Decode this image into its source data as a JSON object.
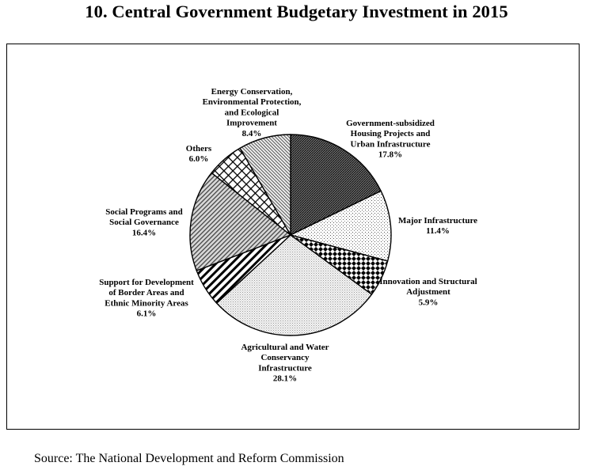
{
  "title": "10. Central Government Budgetary Investment in 2015",
  "source": "Source: The National Development and Reform Commission",
  "chart_data": {
    "type": "pie",
    "title": "10. Central Government Budgetary Investment in 2015",
    "unit": "%",
    "slices": [
      {
        "name": "Government-subsidized Housing Projects and Urban Infrastructure",
        "lines": [
          "Government-subsidized",
          "Housing Projects and",
          "Urban Infrastructure"
        ],
        "value": 17.8,
        "label": "17.8%",
        "pattern": "dense-crosshatch"
      },
      {
        "name": "Major Infrastructure",
        "lines": [
          "Major Infrastructure"
        ],
        "value": 11.4,
        "label": "11.4%",
        "pattern": "dots"
      },
      {
        "name": "Innovation and Structural Adjustment",
        "lines": [
          "Innovation and Structural",
          "Adjustment"
        ],
        "value": 5.9,
        "label": "5.9%",
        "pattern": "checker"
      },
      {
        "name": "Agricultural and Water Conservancy Infrastructure",
        "lines": [
          "Agricultural and Water",
          "Conservancy",
          "Infrastructure"
        ],
        "value": 28.1,
        "label": "28.1%",
        "pattern": "fine-dots"
      },
      {
        "name": "Support for Development of Border Areas and Ethnic Minority Areas",
        "lines": [
          "Support for Development",
          "of Border Areas and",
          "Ethnic Minority Areas"
        ],
        "value": 6.1,
        "label": "6.1%",
        "pattern": "wide-diagonal"
      },
      {
        "name": "Social Programs and Social Governance",
        "lines": [
          "Social Programs and",
          "Social Governance"
        ],
        "value": 16.4,
        "label": "16.4%",
        "pattern": "diagonal-medium"
      },
      {
        "name": "Others",
        "lines": [
          "Others"
        ],
        "value": 6.0,
        "label": "6.0%",
        "pattern": "grid"
      },
      {
        "name": "Energy Conservation, Environmental Protection, and Ecological Improvement",
        "lines": [
          "Energy Conservation,",
          "Environmental Protection,",
          "and Ecological",
          "Improvement"
        ],
        "value": 8.4,
        "label": "8.4%",
        "pattern": "fine-diagonal"
      }
    ]
  }
}
